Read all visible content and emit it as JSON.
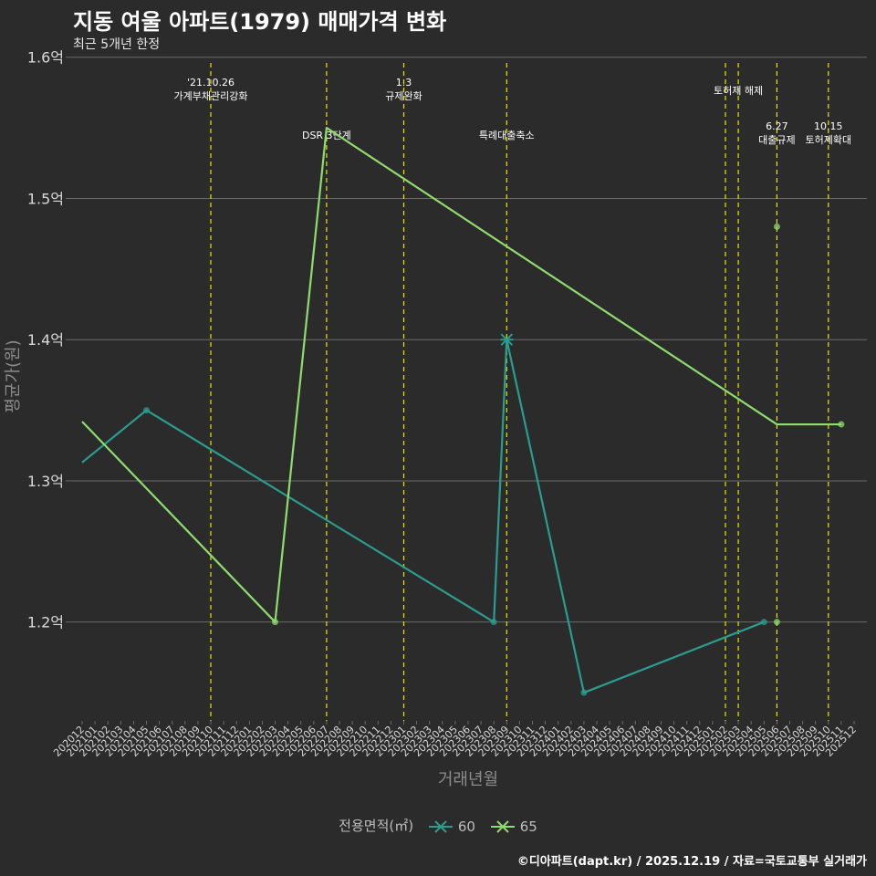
{
  "title": "지동 여울 아파트(1979) 매매가격 변화",
  "subtitle": "최근 5개년 한정",
  "caption": "©디아파트(dapt.kr) / 2025.12.19 / 자료=국토교통부 실거래가",
  "colors": {
    "background": "#2b2b2b",
    "grid": "#6b6b6b",
    "vline": "#e6e600",
    "series60": "#2a9d8f",
    "series65": "#8fdc6e"
  },
  "chart_data": {
    "type": "line",
    "title": "지동 여울 아파트(1979) 매매가격 변화",
    "subtitle": "최근 5개년 한정",
    "xlabel": "거래년월",
    "ylabel": "평균가(원)",
    "ylim": [
      1.13,
      1.605
    ],
    "yticks": [
      1.2,
      1.3,
      1.4,
      1.5,
      1.6
    ],
    "ytick_labels": [
      "1.2억",
      "1.3억",
      "1.4억",
      "1.5억",
      "1.6억"
    ],
    "categories": [
      "202012",
      "202101",
      "202102",
      "202103",
      "202104",
      "202105",
      "202106",
      "202107",
      "202108",
      "202109",
      "202110",
      "202111",
      "202112",
      "202201",
      "202202",
      "202203",
      "202204",
      "202205",
      "202206",
      "202207",
      "202208",
      "202209",
      "202210",
      "202211",
      "202212",
      "202301",
      "202302",
      "202303",
      "202304",
      "202305",
      "202306",
      "202307",
      "202308",
      "202309",
      "202310",
      "202311",
      "202312",
      "202401",
      "202402",
      "202403",
      "202404",
      "202405",
      "202406",
      "202407",
      "202408",
      "202409",
      "202410",
      "202411",
      "202412",
      "202501",
      "202502",
      "202503",
      "202504",
      "202505",
      "202506",
      "202507",
      "202508",
      "202509",
      "202510",
      "202511",
      "202512"
    ],
    "legend_title": "전용면적(㎡)",
    "series": [
      {
        "name": "60",
        "color": "#2a9d8f",
        "points": [
          {
            "x": "202012",
            "y": 1.313,
            "marker": false
          },
          {
            "x": "202105",
            "y": 1.35
          },
          {
            "x": "202308",
            "y": 1.2
          },
          {
            "x": "202309",
            "y": 1.4,
            "cross": true
          },
          {
            "x": "202403",
            "y": 1.15
          },
          {
            "x": "202505",
            "y": 1.2
          }
        ]
      },
      {
        "name": "65",
        "color": "#8fdc6e",
        "points": [
          {
            "x": "202012",
            "y": 1.342,
            "marker": false
          },
          {
            "x": "202203",
            "y": 1.2
          },
          {
            "x": "202207",
            "y": 1.55,
            "marker": false
          },
          {
            "x": "202506",
            "y": 1.34,
            "marker": false
          },
          {
            "x": "202511",
            "y": 1.34
          }
        ]
      }
    ],
    "extra_points": [
      {
        "x": "202506",
        "y": 1.48,
        "color": "#8fdc6e"
      },
      {
        "x": "202506",
        "y": 1.2,
        "color": "#8fdc6e"
      }
    ],
    "events": [
      {
        "x": "202110",
        "lines": [
          "'21.10.26",
          "가계부채관리강화"
        ],
        "row": 1
      },
      {
        "x": "202207",
        "lines": [
          "DSR 3단계"
        ],
        "row": 3
      },
      {
        "x": "202301",
        "lines": [
          "1.3",
          "규제완화"
        ],
        "row": 1
      },
      {
        "x": "202309",
        "lines": [
          "특례대출축소"
        ],
        "row": 3
      },
      {
        "x": "202502",
        "lines": [],
        "row": 0
      },
      {
        "x": "202503",
        "lines": [
          "토허제 해제"
        ],
        "row": 2
      },
      {
        "x": "202506",
        "lines": [
          "6.27",
          "대출규제"
        ],
        "row": 4
      },
      {
        "x": "202510",
        "lines": [
          "10.15",
          "토허제확대"
        ],
        "row": 4
      }
    ]
  }
}
